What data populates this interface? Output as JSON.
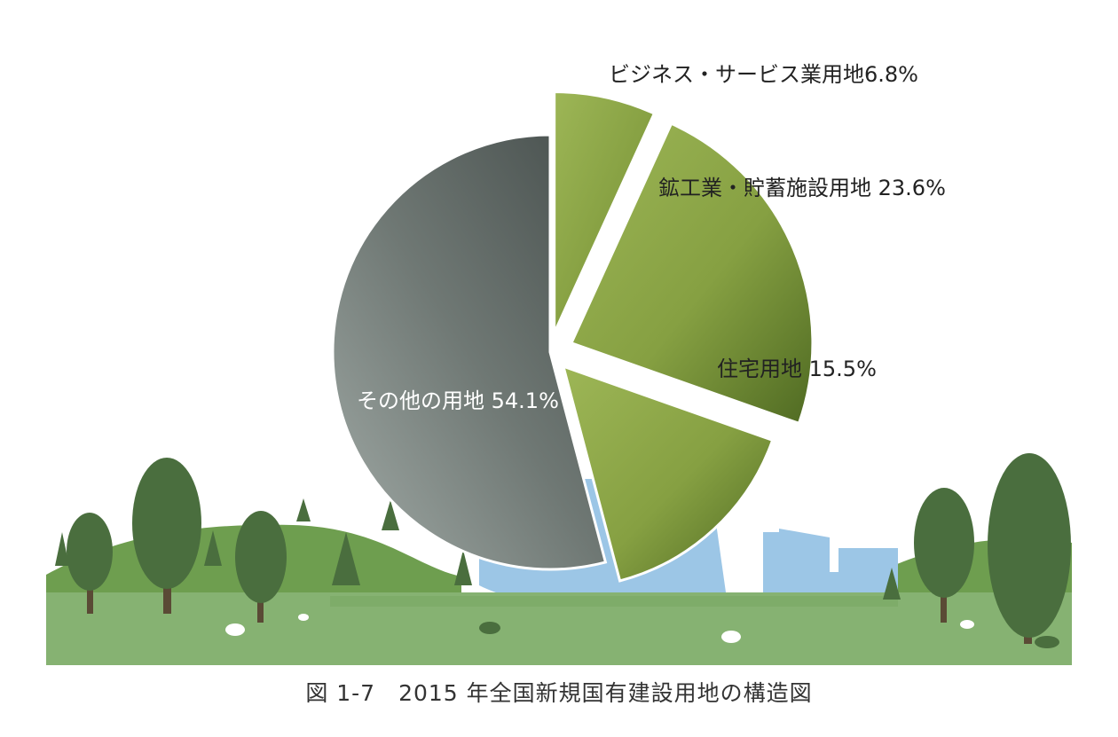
{
  "chart_data": {
    "type": "pie",
    "slices": [
      {
        "label": "ビジネス・サービス業用地",
        "value": 6.8,
        "display": "ビジネス・サービス業用地6.8%",
        "color": "#8fa84a"
      },
      {
        "label": "鉱工業・貯蓄施設用地",
        "value": 23.6,
        "display": "鉱工業・貯蓄施設用地 23.6%",
        "color": "#8fa84a"
      },
      {
        "label": "住宅用地",
        "value": 15.5,
        "display": "住宅用地 15.5%",
        "color": "#8fa84a"
      },
      {
        "label": "その他の用地",
        "value": 54.1,
        "display": "その他の用地 54.1%",
        "color": "#6e7672"
      }
    ]
  },
  "caption": "図 1-7　2015 年全国新規国有建設用地の構造図"
}
